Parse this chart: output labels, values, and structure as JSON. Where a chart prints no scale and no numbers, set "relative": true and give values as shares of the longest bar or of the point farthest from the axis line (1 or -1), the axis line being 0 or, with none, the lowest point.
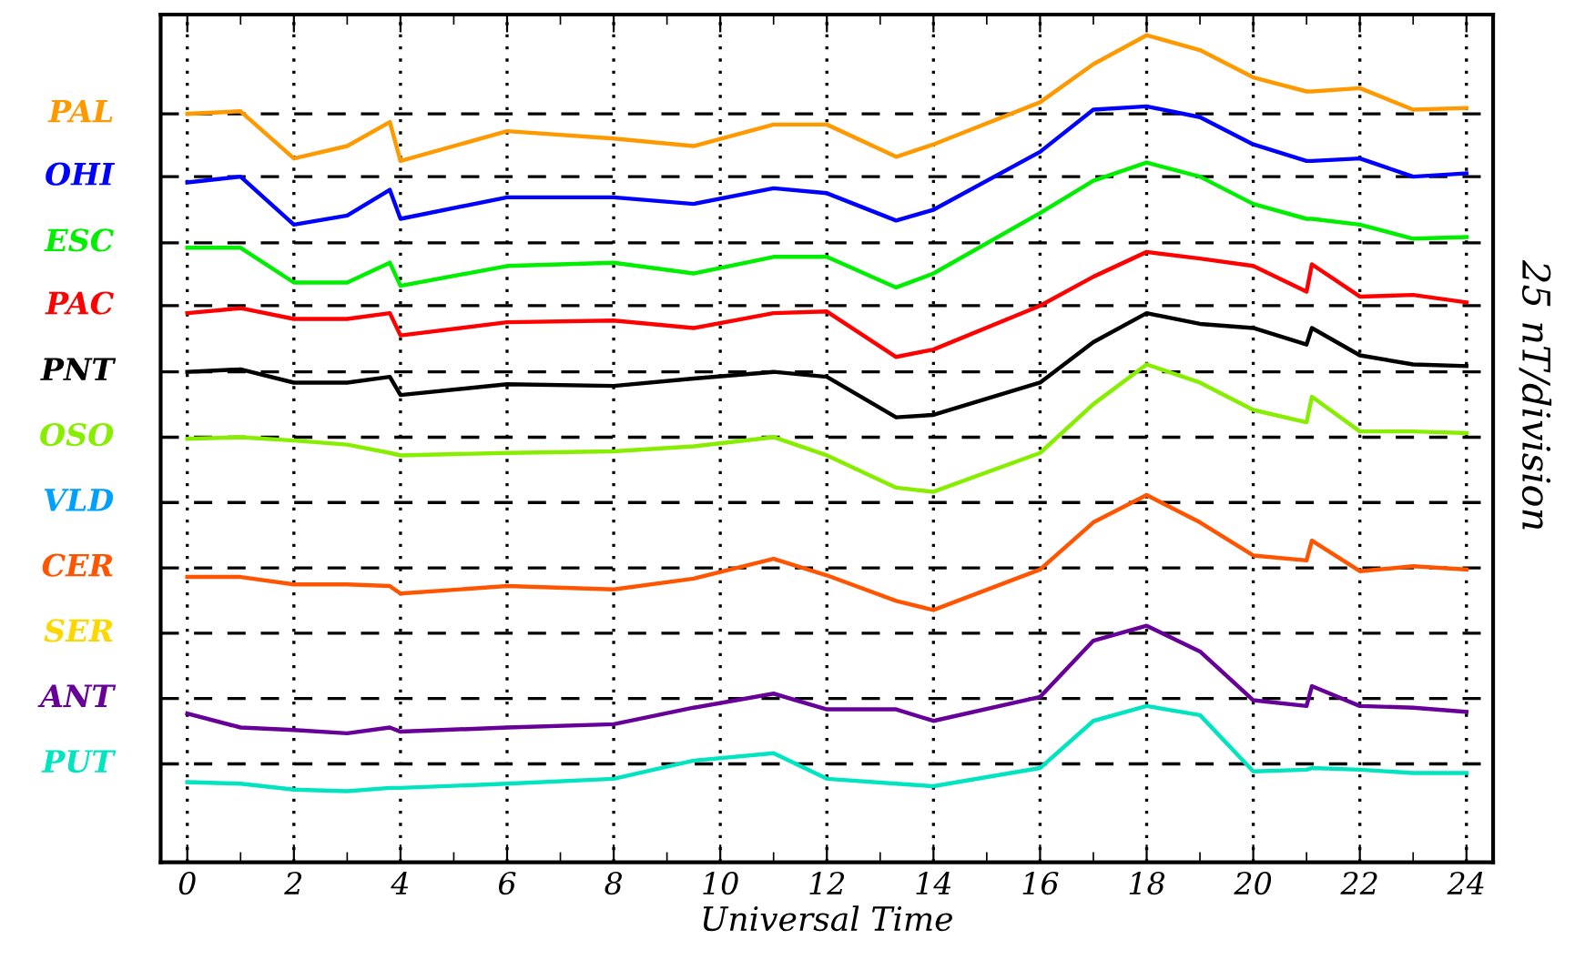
{
  "chart_data": {
    "type": "line",
    "relative": true,
    "xlabel": "Universal Time",
    "y2label": "25 nT/division",
    "x": [
      0,
      1,
      2,
      3,
      3.8,
      4,
      6,
      8,
      9.5,
      11,
      12,
      13.3,
      14,
      16,
      17,
      18,
      19,
      20,
      21,
      21.1,
      22,
      23,
      24
    ],
    "xlim": [
      -0.5,
      24.5
    ],
    "xticks": [
      0,
      {
        "value": 1,
        "label": null
      },
      2,
      {
        "value": 3,
        "label": null
      },
      4,
      {
        "value": 5,
        "label": null
      },
      6,
      {
        "value": 7,
        "label": null
      },
      8,
      {
        "value": 9,
        "label": null
      },
      10,
      {
        "value": 11,
        "label": null
      },
      12,
      {
        "value": 13,
        "label": null
      },
      14,
      {
        "value": 15,
        "label": null
      },
      16,
      {
        "value": 17,
        "label": null
      },
      18,
      {
        "value": 19,
        "label": null
      },
      20,
      {
        "value": 21,
        "label": null
      },
      22,
      {
        "value": 23,
        "label": null
      },
      24
    ],
    "grid": "x",
    "legend": false,
    "line_style": "solid",
    "series": [
      {
        "name": "PAL",
        "color": "#ff9900",
        "values": [
          0.905,
          0.908,
          0.851,
          0.866,
          0.895,
          0.848,
          0.884,
          0.875,
          0.866,
          0.892,
          0.892,
          0.853,
          0.868,
          0.919,
          0.965,
          1.0,
          0.982,
          0.949,
          0.932,
          0.932,
          0.936,
          0.91,
          0.912
        ]
      },
      {
        "name": "OHI",
        "color": "#0000ff",
        "values": [
          0.822,
          0.829,
          0.771,
          0.782,
          0.813,
          0.778,
          0.804,
          0.804,
          0.796,
          0.815,
          0.809,
          0.776,
          0.789,
          0.859,
          0.91,
          0.914,
          0.901,
          0.868,
          0.848,
          0.848,
          0.851,
          0.829,
          0.833
        ]
      },
      {
        "name": "ESC",
        "color": "#00ee00",
        "values": [
          0.743,
          0.743,
          0.701,
          0.701,
          0.725,
          0.697,
          0.721,
          0.725,
          0.712,
          0.732,
          0.732,
          0.695,
          0.712,
          0.785,
          0.824,
          0.846,
          0.829,
          0.796,
          0.778,
          0.778,
          0.771,
          0.754,
          0.756
        ]
      },
      {
        "name": "PAC",
        "color": "#ff0000",
        "values": [
          0.664,
          0.67,
          0.657,
          0.657,
          0.664,
          0.637,
          0.653,
          0.655,
          0.646,
          0.664,
          0.666,
          0.611,
          0.62,
          0.673,
          0.708,
          0.738,
          0.73,
          0.721,
          0.69,
          0.723,
          0.684,
          0.686,
          0.677
        ]
      },
      {
        "name": "PNT",
        "color": "#000000",
        "values": [
          0.593,
          0.596,
          0.58,
          0.58,
          0.587,
          0.565,
          0.578,
          0.576,
          0.585,
          0.593,
          0.587,
          0.538,
          0.541,
          0.58,
          0.629,
          0.664,
          0.651,
          0.646,
          0.626,
          0.646,
          0.613,
          0.602,
          0.6
        ]
      },
      {
        "name": "OSO",
        "color": "#88ee00",
        "values": [
          0.512,
          0.514,
          0.51,
          0.505,
          0.495,
          0.492,
          0.495,
          0.497,
          0.503,
          0.514,
          0.492,
          0.453,
          0.448,
          0.495,
          0.554,
          0.602,
          0.58,
          0.547,
          0.532,
          0.563,
          0.521,
          0.521,
          0.519
        ]
      },
      {
        "name": "VLD",
        "color": "#00a0ff",
        "values": [
          null,
          null,
          null,
          null,
          null,
          null,
          null,
          null,
          null,
          null,
          null,
          null,
          null,
          null,
          null,
          null,
          null,
          null,
          null,
          null,
          null,
          null,
          null
        ]
      },
      {
        "name": "CER",
        "color": "#ff5500",
        "values": [
          0.345,
          0.345,
          0.336,
          0.336,
          0.334,
          0.325,
          0.334,
          0.33,
          0.343,
          0.367,
          0.347,
          0.316,
          0.305,
          0.354,
          0.411,
          0.444,
          0.411,
          0.371,
          0.365,
          0.389,
          0.352,
          0.358,
          0.354
        ]
      },
      {
        "name": "SER",
        "color": "#ffd700",
        "values": [
          null,
          null,
          null,
          null,
          null,
          null,
          null,
          null,
          null,
          null,
          null,
          null,
          null,
          null,
          null,
          null,
          null,
          null,
          null,
          null,
          null,
          null,
          null
        ]
      },
      {
        "name": "ANT",
        "color": "#660099",
        "values": [
          0.18,
          0.163,
          0.16,
          0.156,
          0.163,
          0.158,
          0.163,
          0.167,
          0.187,
          0.204,
          0.185,
          0.185,
          0.171,
          0.2,
          0.268,
          0.286,
          0.255,
          0.196,
          0.189,
          0.213,
          0.189,
          0.187,
          0.182
        ]
      },
      {
        "name": "PUT",
        "color": "#00e5c0",
        "values": [
          0.097,
          0.095,
          0.088,
          0.086,
          0.09,
          0.09,
          0.095,
          0.101,
          0.123,
          0.132,
          0.101,
          0.095,
          0.092,
          0.114,
          0.171,
          0.189,
          0.178,
          0.11,
          0.112,
          0.114,
          0.112,
          0.108,
          0.108
        ]
      }
    ],
    "ref_lines": [
      {
        "axis": "y",
        "value": 0.905,
        "color": "#000000",
        "line_style": "dashed"
      },
      {
        "axis": "y",
        "value": 0.829,
        "color": "#000000",
        "line_style": "dashed"
      },
      {
        "axis": "y",
        "value": 0.749,
        "color": "#000000",
        "line_style": "dashed"
      },
      {
        "axis": "y",
        "value": 0.673,
        "color": "#000000",
        "line_style": "dashed"
      },
      {
        "axis": "y",
        "value": 0.593,
        "color": "#000000",
        "line_style": "dashed"
      },
      {
        "axis": "y",
        "value": 0.514,
        "color": "#000000",
        "line_style": "dashed"
      },
      {
        "axis": "y",
        "value": 0.435,
        "color": "#000000",
        "line_style": "dashed"
      },
      {
        "axis": "y",
        "value": 0.356,
        "color": "#000000",
        "line_style": "dashed"
      },
      {
        "axis": "y",
        "value": 0.277,
        "color": "#000000",
        "line_style": "dashed"
      },
      {
        "axis": "y",
        "value": 0.198,
        "color": "#000000",
        "line_style": "dashed"
      },
      {
        "axis": "y",
        "value": 0.119,
        "color": "#000000",
        "line_style": "dashed"
      }
    ]
  }
}
